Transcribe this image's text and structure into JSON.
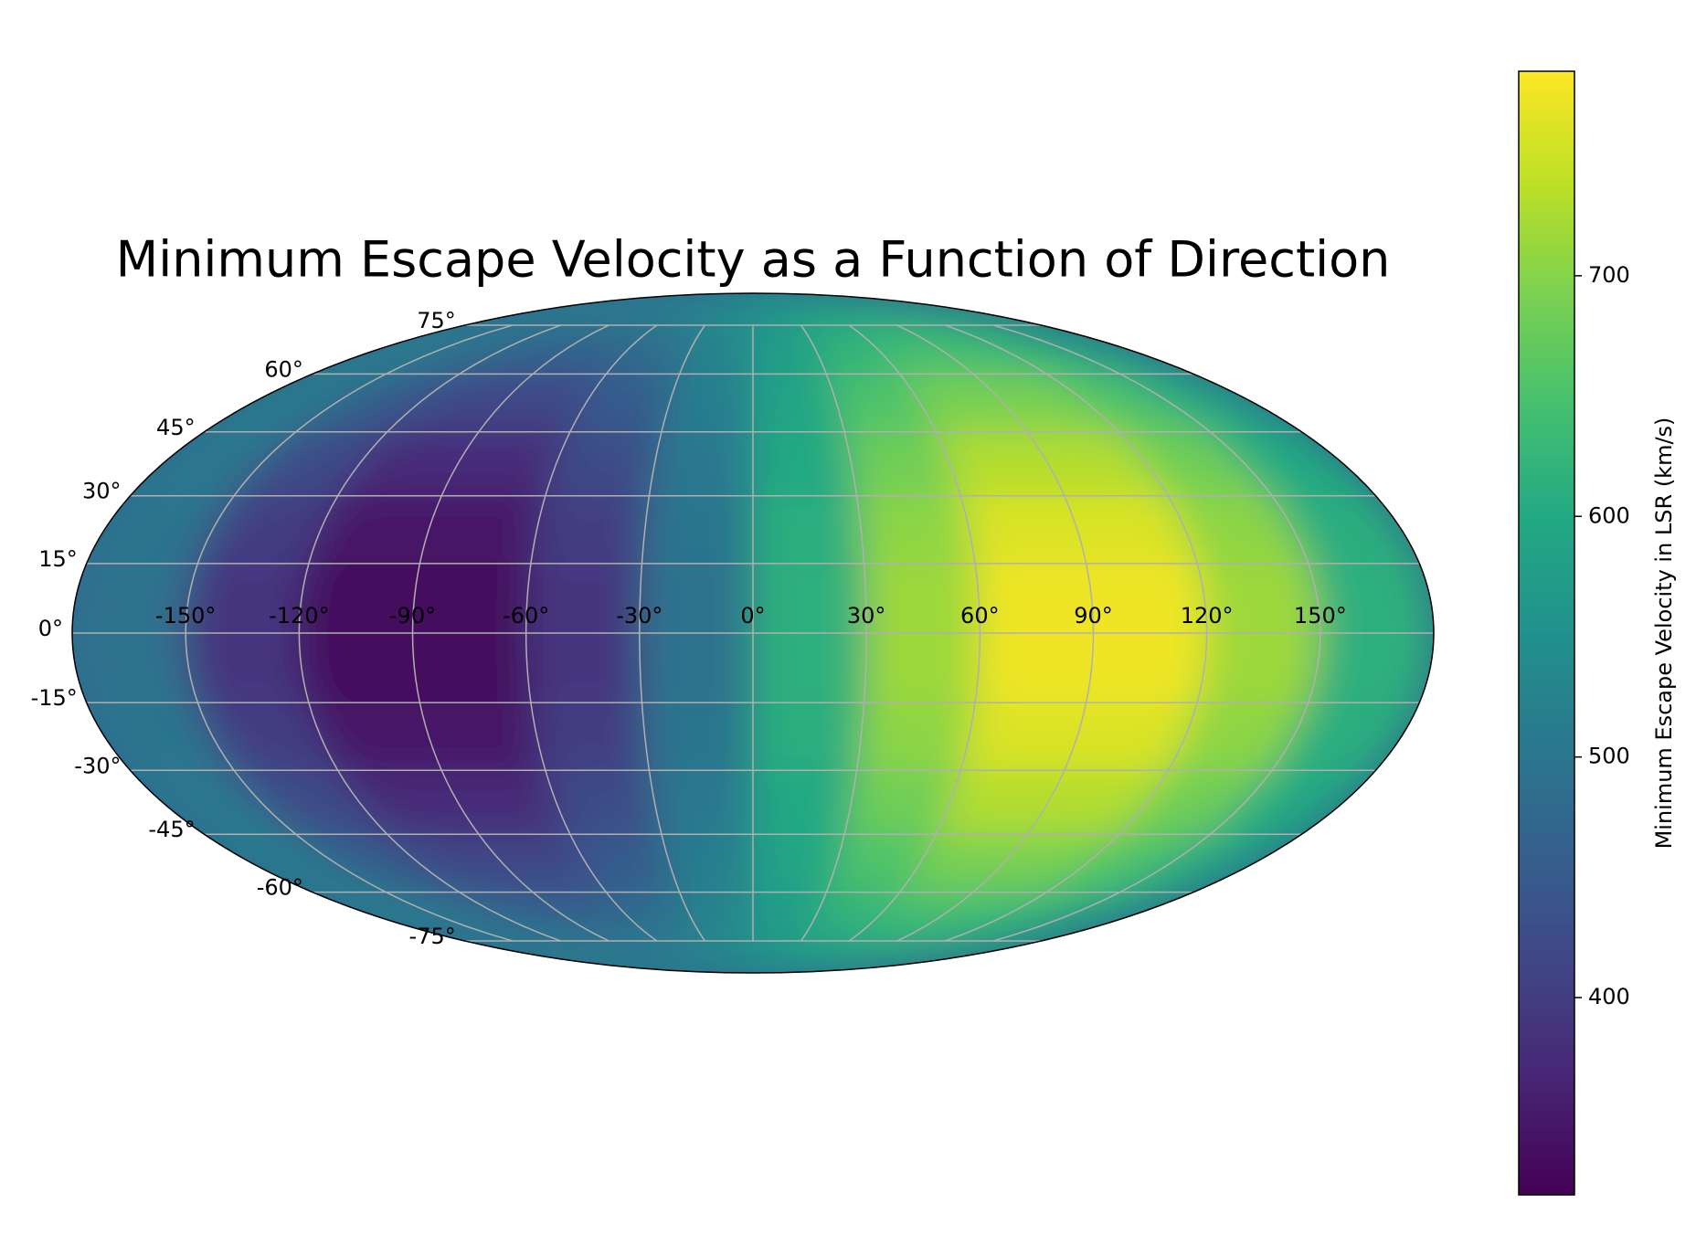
{
  "chart_data": {
    "type": "mollweide_heatmap",
    "title": "Minimum Escape Velocity as a Function of Direction",
    "colorbar_label": "Minimum Escape Velocity in LSR (km/s)",
    "colormap": "viridis",
    "lon_bins": [
      -180,
      -150,
      -120,
      -90,
      -60,
      -30,
      0,
      30,
      60,
      90,
      120,
      150,
      180
    ],
    "lat_bins": [
      90,
      75,
      60,
      45,
      30,
      15,
      0,
      -15,
      -30,
      -45,
      -60,
      -75,
      -90
    ],
    "values": [
      [
        545,
        532,
        524,
        524,
        532,
        545,
        561,
        575,
        582,
        582,
        575,
        561
      ],
      [
        530,
        490,
        467,
        467,
        490,
        530,
        576,
        616,
        639,
        639,
        616,
        576
      ],
      [
        516,
        453,
        417,
        417,
        453,
        516,
        590,
        653,
        690,
        690,
        653,
        590
      ],
      [
        505,
        423,
        375,
        375,
        423,
        505,
        601,
        683,
        731,
        731,
        683,
        601
      ],
      [
        498,
        401,
        346,
        346,
        401,
        498,
        609,
        705,
        760,
        760,
        705,
        609
      ],
      [
        494,
        391,
        331,
        331,
        391,
        494,
        613,
        716,
        775,
        775,
        716,
        613
      ],
      [
        494,
        391,
        331,
        331,
        391,
        494,
        613,
        716,
        775,
        775,
        716,
        613
      ],
      [
        498,
        401,
        346,
        346,
        401,
        498,
        609,
        705,
        760,
        760,
        705,
        609
      ],
      [
        505,
        423,
        375,
        375,
        423,
        505,
        601,
        683,
        731,
        731,
        683,
        601
      ],
      [
        516,
        453,
        417,
        417,
        453,
        516,
        590,
        653,
        690,
        690,
        653,
        590
      ],
      [
        530,
        490,
        467,
        467,
        490,
        530,
        576,
        616,
        639,
        639,
        616,
        576
      ],
      [
        545,
        532,
        524,
        524,
        532,
        545,
        561,
        575,
        582,
        582,
        575,
        561
      ]
    ],
    "xticks": [
      {
        "value": -150,
        "label": "-150°"
      },
      {
        "value": -120,
        "label": "-120°"
      },
      {
        "value": -90,
        "label": "-90°"
      },
      {
        "value": -60,
        "label": "-60°"
      },
      {
        "value": -30,
        "label": "-30°"
      },
      {
        "value": 0,
        "label": "0°"
      },
      {
        "value": 30,
        "label": "30°"
      },
      {
        "value": 60,
        "label": "60°"
      },
      {
        "value": 90,
        "label": "90°"
      },
      {
        "value": 120,
        "label": "120°"
      },
      {
        "value": 150,
        "label": "150°"
      }
    ],
    "yticks": [
      {
        "value": -75,
        "label": "-75°"
      },
      {
        "value": -60,
        "label": "-60°"
      },
      {
        "value": -45,
        "label": "-45°"
      },
      {
        "value": -30,
        "label": "-30°"
      },
      {
        "value": -15,
        "label": "-15°"
      },
      {
        "value": 0,
        "label": "0°"
      },
      {
        "value": 15,
        "label": "15°"
      },
      {
        "value": 30,
        "label": "30°"
      },
      {
        "value": 45,
        "label": "45°"
      },
      {
        "value": 60,
        "label": "60°"
      },
      {
        "value": 75,
        "label": "75°"
      }
    ],
    "clim": [
      318,
      785
    ],
    "cticks": [
      400,
      500,
      600,
      700
    ],
    "grid": true
  }
}
